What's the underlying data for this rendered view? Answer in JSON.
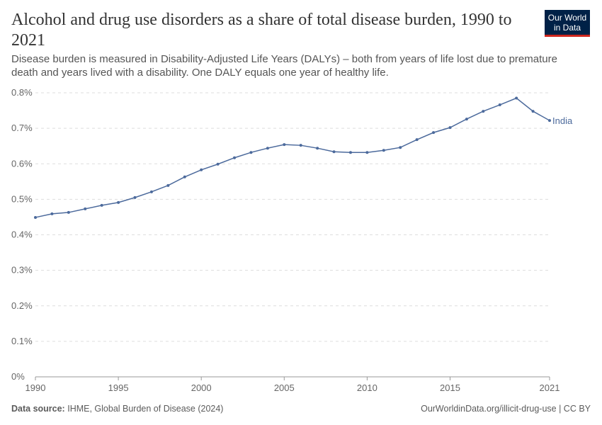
{
  "header": {
    "title": "Alcohol and drug use disorders as a share of total disease burden, 1990 to 2021",
    "subtitle": "Disease burden is measured in Disability-Adjusted Life Years (DALYs) – both from years of life lost due to premature death and years lived with a disability. One DALY equals one year of healthy life.",
    "logo": "Our World in Data"
  },
  "footer": {
    "source_label": "Data source:",
    "source": "IHME, Global Burden of Disease (2024)",
    "url": "OurWorldinData.org/illicit-drug-use | CC BY"
  },
  "chart_data": {
    "type": "line",
    "title": "Alcohol and drug use disorders as a share of total disease burden, 1990 to 2021",
    "xlim": [
      1990,
      2021
    ],
    "ylim": [
      0,
      0.8
    ],
    "y_unit": "%",
    "grid": "horizontal dashed",
    "legend": "inline-right",
    "x_ticks": [
      "1990",
      "1995",
      "2000",
      "2005",
      "2010",
      "2015",
      "2021"
    ],
    "y_ticks": [
      "0%",
      "0.1%",
      "0.2%",
      "0.3%",
      "0.4%",
      "0.5%",
      "0.6%",
      "0.7%",
      "0.8%"
    ],
    "colors": {
      "India": "#4c6a9c"
    },
    "series": [
      {
        "name": "India",
        "x": [
          1990,
          1991,
          1992,
          1993,
          1994,
          1995,
          1996,
          1997,
          1998,
          1999,
          2000,
          2001,
          2002,
          2003,
          2004,
          2005,
          2006,
          2007,
          2008,
          2009,
          2010,
          2011,
          2012,
          2013,
          2014,
          2015,
          2016,
          2017,
          2018,
          2019,
          2020,
          2021
        ],
        "values": [
          0.449,
          0.459,
          0.463,
          0.473,
          0.483,
          0.491,
          0.505,
          0.521,
          0.539,
          0.563,
          0.583,
          0.599,
          0.617,
          0.632,
          0.644,
          0.654,
          0.652,
          0.644,
          0.634,
          0.632,
          0.632,
          0.638,
          0.646,
          0.668,
          0.688,
          0.702,
          0.726,
          0.748,
          0.766,
          0.785,
          0.748,
          0.722
        ]
      }
    ]
  }
}
